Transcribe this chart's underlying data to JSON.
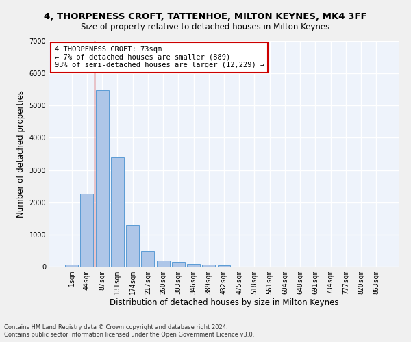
{
  "title_line1": "4, THORPENESS CROFT, TATTENHOE, MILTON KEYNES, MK4 3FF",
  "title_line2": "Size of property relative to detached houses in Milton Keynes",
  "xlabel": "Distribution of detached houses by size in Milton Keynes",
  "ylabel": "Number of detached properties",
  "categories": [
    "1sqm",
    "44sqm",
    "87sqm",
    "131sqm",
    "174sqm",
    "217sqm",
    "260sqm",
    "303sqm",
    "346sqm",
    "389sqm",
    "432sqm",
    "475sqm",
    "518sqm",
    "561sqm",
    "604sqm",
    "648sqm",
    "691sqm",
    "734sqm",
    "777sqm",
    "820sqm",
    "863sqm"
  ],
  "bar_values": [
    60,
    2280,
    5480,
    3400,
    1290,
    490,
    195,
    155,
    90,
    60,
    40,
    0,
    0,
    0,
    0,
    0,
    0,
    0,
    0,
    0,
    0
  ],
  "bar_color": "#aec6e8",
  "bar_edge_color": "#5b9bd5",
  "ylim": [
    0,
    7000
  ],
  "yticks": [
    0,
    1000,
    2000,
    3000,
    4000,
    5000,
    6000,
    7000
  ],
  "annotation_text_line1": "4 THORPENESS CROFT: 73sqm",
  "annotation_text_line2": "← 7% of detached houses are smaller (889)",
  "annotation_text_line3": "93% of semi-detached houses are larger (12,229) →",
  "vline_x": 1.5,
  "footer_line1": "Contains HM Land Registry data © Crown copyright and database right 2024.",
  "footer_line2": "Contains public sector information licensed under the Open Government Licence v3.0.",
  "background_color": "#eef3fb",
  "fig_background_color": "#f0f0f0",
  "grid_color": "#ffffff",
  "annotation_box_color": "#ffffff",
  "annotation_box_edge_color": "#cc0000",
  "vline_color": "#cc0000",
  "title1_fontsize": 9.5,
  "title2_fontsize": 8.5,
  "ylabel_fontsize": 8.5,
  "xlabel_fontsize": 8.5,
  "tick_fontsize": 7,
  "annotation_fontsize": 7.5,
  "footer_fontsize": 6
}
